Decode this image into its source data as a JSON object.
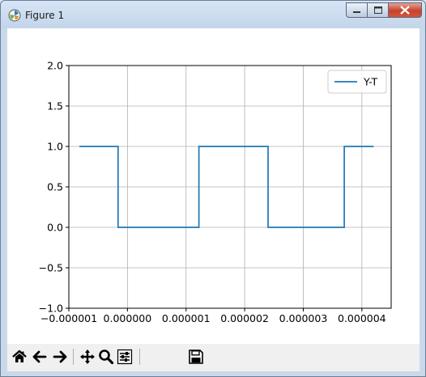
{
  "window": {
    "title": "Figure 1",
    "buttons": {
      "minimize": "minimize",
      "maximize": "maximize",
      "close": "close"
    }
  },
  "toolbar": {
    "buttons": [
      {
        "name": "home-button",
        "icon": "home-icon"
      },
      {
        "name": "back-button",
        "icon": "arrow-left-icon"
      },
      {
        "name": "forward-button",
        "icon": "arrow-right-icon"
      },
      {
        "name": "pan-button",
        "icon": "move-icon"
      },
      {
        "name": "zoom-button",
        "icon": "magnifier-icon"
      },
      {
        "name": "configure-subplots-button",
        "icon": "sliders-icon"
      },
      {
        "name": "save-button",
        "icon": "floppy-icon"
      }
    ]
  },
  "colors": {
    "series": "#1f77b4",
    "grid": "#b0b0b0"
  },
  "chart_data": {
    "type": "line",
    "title": "",
    "xlabel": "",
    "ylabel": "",
    "xlim": [
      -1e-06,
      4.5e-06
    ],
    "ylim": [
      -1.0,
      2.0
    ],
    "grid": true,
    "legend_position": "upper right",
    "x_ticks": [
      -1e-06,
      0.0,
      1e-06,
      2e-06,
      3e-06,
      4e-06
    ],
    "x_tick_labels": [
      "−0.000001",
      "0.000000",
      "0.000001",
      "0.000002",
      "0.000003",
      "0.000004"
    ],
    "y_ticks": [
      -1.0,
      -0.5,
      0.0,
      0.5,
      1.0,
      1.5,
      2.0
    ],
    "y_tick_labels": [
      "−1.0",
      "−0.5",
      "0.0",
      "0.5",
      "1.0",
      "1.5",
      "2.0"
    ],
    "series": [
      {
        "name": "Y-T",
        "x": [
          -8.2e-07,
          -1.6e-07,
          -1.6e-07,
          1.22e-06,
          1.22e-06,
          2.4e-06,
          2.4e-06,
          3.7e-06,
          3.7e-06,
          4.2e-06
        ],
        "y": [
          1,
          1,
          0,
          0,
          1,
          1,
          0,
          0,
          1,
          1
        ]
      }
    ]
  }
}
